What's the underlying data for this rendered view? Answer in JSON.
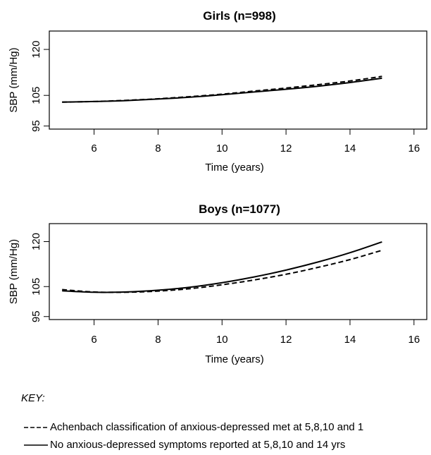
{
  "chart_data": [
    {
      "type": "line",
      "title": "Girls (n=998)",
      "xlabel": "Time (years)",
      "ylabel": "SBP (mm/Hg)",
      "xlim": [
        4.6,
        16.4
      ],
      "ylim": [
        94,
        126
      ],
      "xticks": [
        6,
        8,
        10,
        12,
        14,
        16
      ],
      "yticks": [
        95,
        105,
        120
      ],
      "grid": false,
      "series": [
        {
          "name": "Achenbach classification of anxious-depressed met at 5,8,10 and 1",
          "style": "dashed",
          "x": [
            5,
            6,
            7,
            8,
            9,
            10,
            11,
            12,
            13,
            14,
            15
          ],
          "y": [
            102.8,
            103.0,
            103.4,
            103.9,
            104.6,
            105.4,
            106.4,
            107.4,
            108.5,
            109.7,
            111.2
          ]
        },
        {
          "name": "No anxious-depressed symptoms reported at 5,8,10 and 14 yrs",
          "style": "solid",
          "x": [
            5,
            6,
            7,
            8,
            9,
            10,
            11,
            12,
            13,
            14,
            15
          ],
          "y": [
            102.8,
            103.0,
            103.3,
            103.8,
            104.4,
            105.2,
            106.1,
            107.0,
            108.0,
            109.2,
            110.6
          ]
        }
      ]
    },
    {
      "type": "line",
      "title": "Boys (n=1077)",
      "xlabel": "Time (years)",
      "ylabel": "SBP (mm/Hg)",
      "xlim": [
        4.6,
        16.4
      ],
      "ylim": [
        94,
        126
      ],
      "xticks": [
        6,
        8,
        10,
        12,
        14,
        16
      ],
      "yticks": [
        95,
        105,
        120
      ],
      "grid": false,
      "series": [
        {
          "name": "Achenbach classification of anxious-depressed met at 5,8,10 and 1",
          "style": "dashed",
          "x": [
            5,
            6,
            7,
            8,
            9,
            10,
            11,
            12,
            13,
            14,
            15
          ],
          "y": [
            104.0,
            103.2,
            103.1,
            103.5,
            104.3,
            105.6,
            107.2,
            109.1,
            111.4,
            114.0,
            117.1
          ]
        },
        {
          "name": "No anxious-depressed symptoms reported at 5,8,10 and 14 yrs",
          "style": "solid",
          "x": [
            5,
            6,
            7,
            8,
            9,
            10,
            11,
            12,
            13,
            14,
            15
          ],
          "y": [
            103.6,
            103.1,
            103.2,
            103.8,
            104.8,
            106.3,
            108.2,
            110.5,
            113.2,
            116.3,
            119.9
          ]
        }
      ]
    }
  ],
  "key": {
    "heading": "KEY:",
    "items": [
      {
        "label": "Achenbach classification of anxious-depressed met at 5,8,10 and 1",
        "style": "dashed"
      },
      {
        "label": "No anxious-depressed symptoms reported at 5,8,10 and 14 yrs",
        "style": "solid"
      }
    ]
  }
}
